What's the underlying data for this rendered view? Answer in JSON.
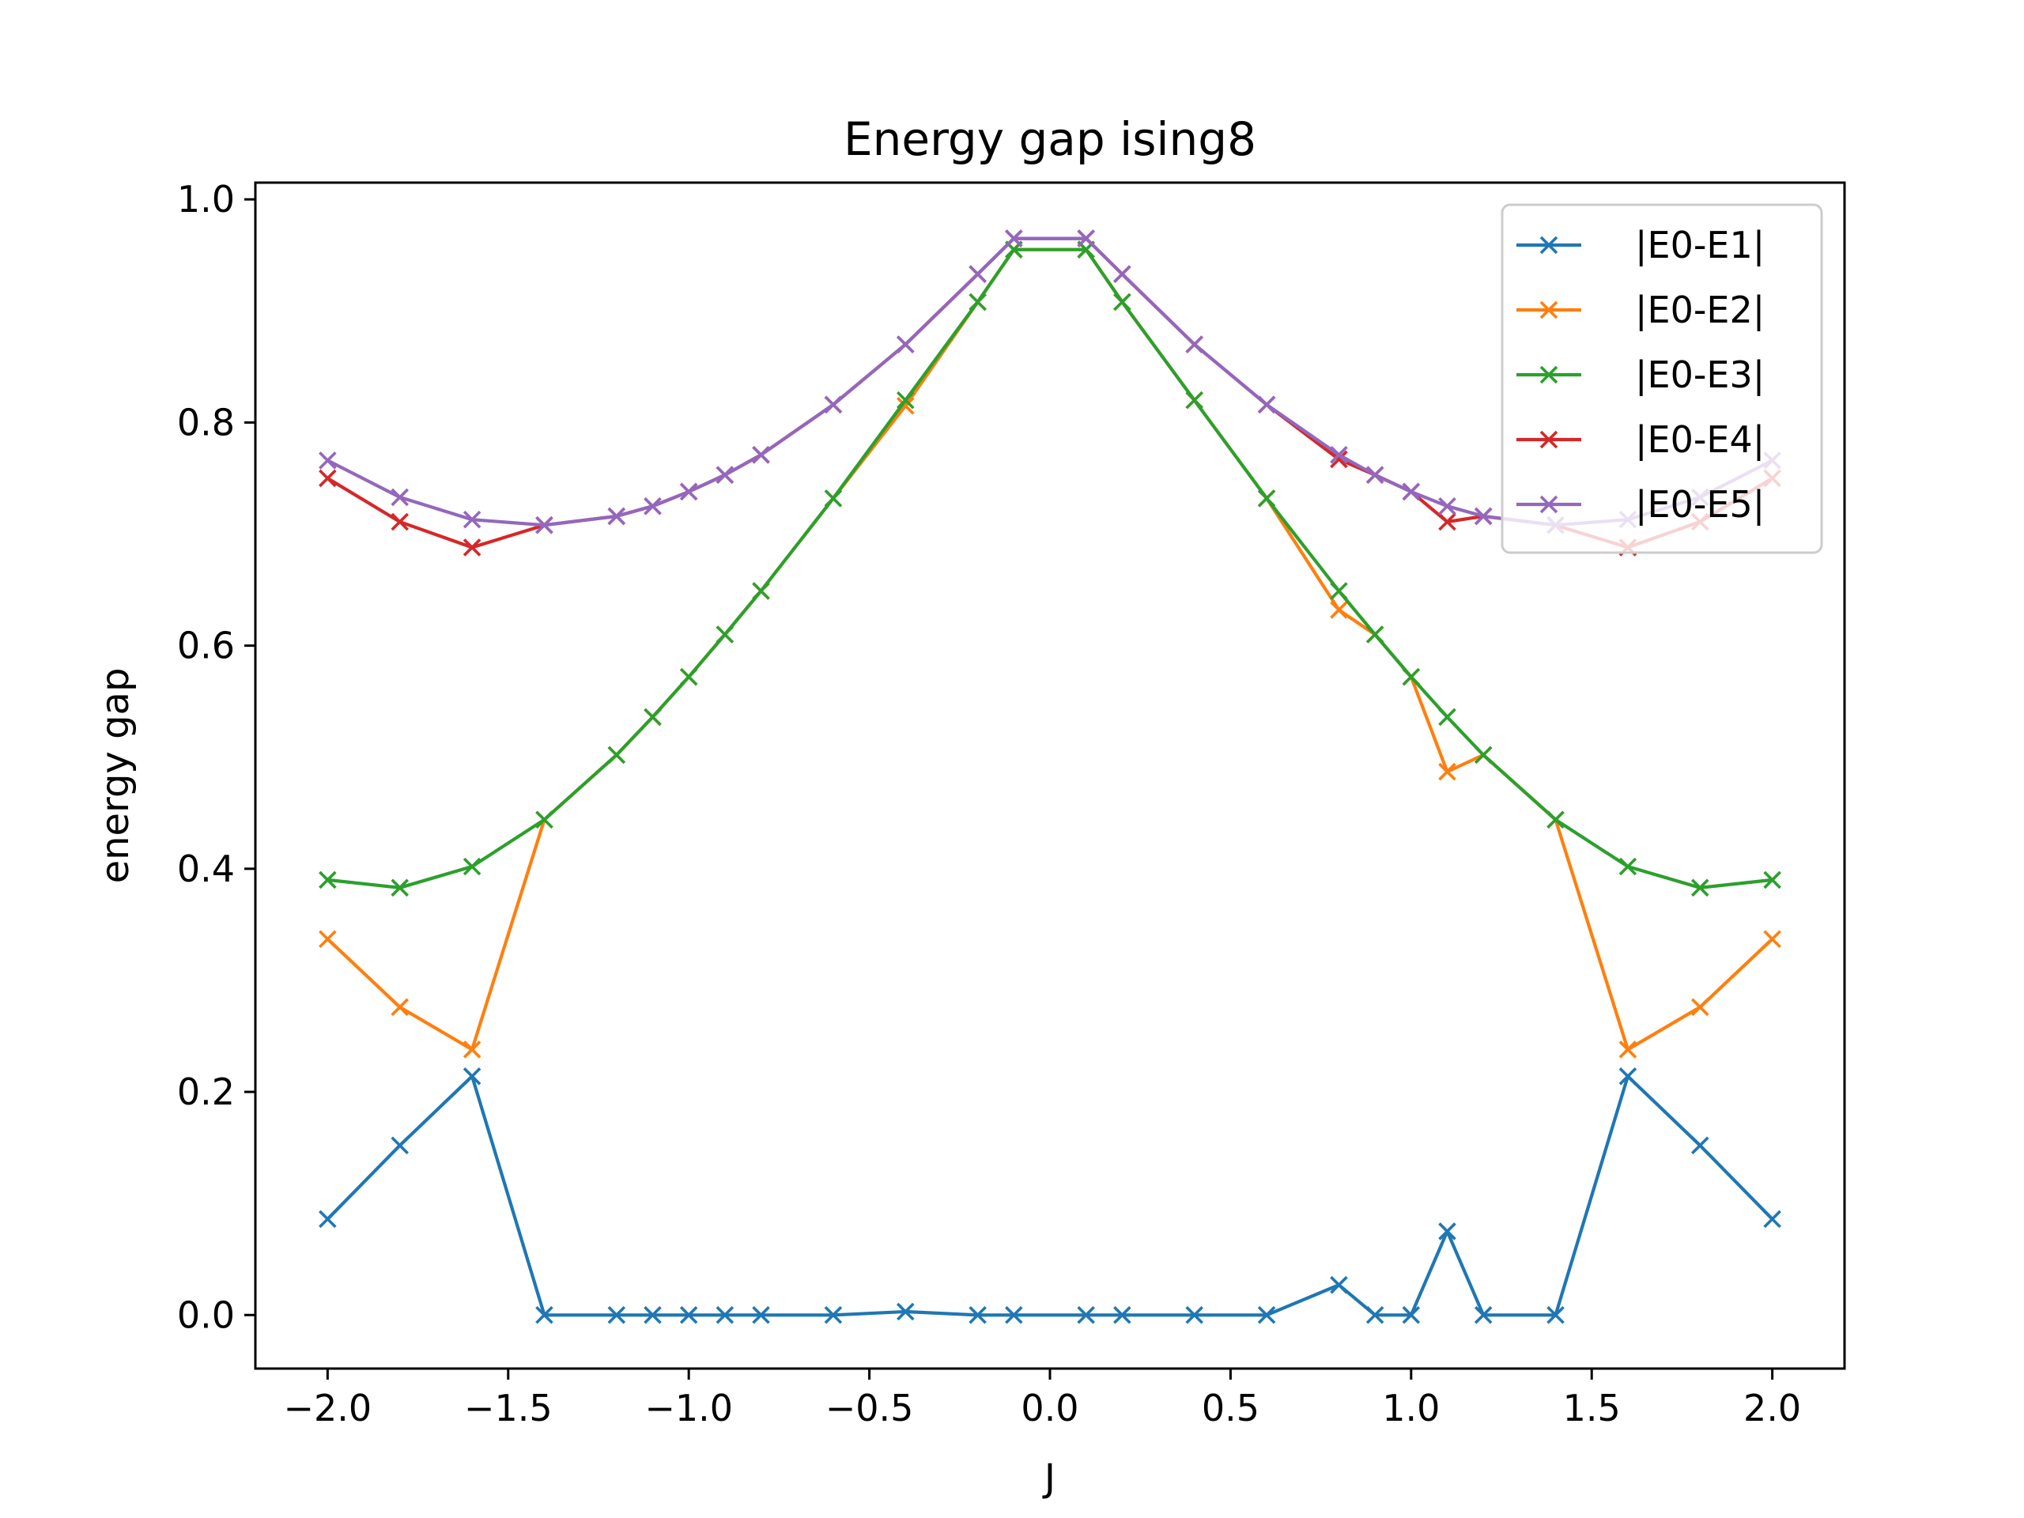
{
  "chart_data": {
    "type": "line",
    "title": "Energy gap ising8",
    "xlabel": "J",
    "ylabel": "energy gap",
    "xlim": [
      -2.2,
      2.2
    ],
    "ylim": [
      -0.048,
      1.015
    ],
    "xticks": [
      -2.0,
      -1.5,
      -1.0,
      -0.5,
      0.0,
      0.5,
      1.0,
      1.5,
      2.0
    ],
    "xtick_labels": [
      "−2.0",
      "−1.5",
      "−1.0",
      "−0.5",
      "0.0",
      "0.5",
      "1.0",
      "1.5",
      "2.0"
    ],
    "yticks": [
      0.0,
      0.2,
      0.4,
      0.6,
      0.8,
      1.0
    ],
    "ytick_labels": [
      "0.0",
      "0.2",
      "0.4",
      "0.6",
      "0.8",
      "1.0"
    ],
    "grid": false,
    "legend_position": "top-right",
    "marker": "x",
    "x": [
      -2.0,
      -1.8,
      -1.6,
      -1.4,
      -1.2,
      -1.1,
      -1.0,
      -0.9,
      -0.8,
      -0.6,
      -0.4,
      -0.2,
      -0.1,
      0.1,
      0.2,
      0.4,
      0.6,
      0.8,
      0.9,
      1.0,
      1.1,
      1.2,
      1.4,
      1.6,
      1.8,
      2.0
    ],
    "series": [
      {
        "name": "|E0-E1|",
        "color": "#1f77b4",
        "values": [
          0.086,
          0.152,
          0.214,
          0.0,
          0.0,
          0.0,
          0.0,
          0.0,
          0.0,
          0.0,
          0.003,
          0.0,
          0.0,
          0.0,
          0.0,
          0.0,
          0.0,
          0.027,
          0.0,
          0.0,
          0.075,
          0.0,
          0.0,
          0.214,
          0.152,
          0.086
        ]
      },
      {
        "name": "|E0-E2|",
        "color": "#ff7f0e",
        "values": [
          0.337,
          0.276,
          0.238,
          0.444,
          0.502,
          0.536,
          0.572,
          0.61,
          0.649,
          0.732,
          0.815,
          0.908,
          0.955,
          0.955,
          0.908,
          0.82,
          0.732,
          0.632,
          0.61,
          0.572,
          0.487,
          0.502,
          0.444,
          0.238,
          0.276,
          0.337
        ]
      },
      {
        "name": "|E0-E3|",
        "color": "#2ca02c",
        "values": [
          0.39,
          0.383,
          0.402,
          0.444,
          0.502,
          0.536,
          0.572,
          0.61,
          0.649,
          0.732,
          0.82,
          0.908,
          0.955,
          0.955,
          0.908,
          0.82,
          0.732,
          0.649,
          0.61,
          0.572,
          0.536,
          0.502,
          0.444,
          0.402,
          0.383,
          0.39
        ]
      },
      {
        "name": "|E0-E4|",
        "color": "#d62728",
        "values": [
          0.75,
          0.711,
          0.688,
          0.708,
          0.716,
          0.725,
          0.738,
          0.753,
          0.771,
          0.816,
          0.87,
          0.933,
          0.965,
          0.965,
          0.933,
          0.87,
          0.816,
          0.767,
          0.753,
          0.738,
          0.711,
          0.716,
          0.708,
          0.688,
          0.711,
          0.75
        ]
      },
      {
        "name": "|E0-E5|",
        "color": "#9467bd",
        "values": [
          0.766,
          0.733,
          0.713,
          0.708,
          0.716,
          0.725,
          0.738,
          0.753,
          0.771,
          0.816,
          0.87,
          0.933,
          0.965,
          0.965,
          0.933,
          0.87,
          0.816,
          0.771,
          0.753,
          0.738,
          0.725,
          0.716,
          0.708,
          0.713,
          0.733,
          0.766
        ]
      }
    ]
  }
}
